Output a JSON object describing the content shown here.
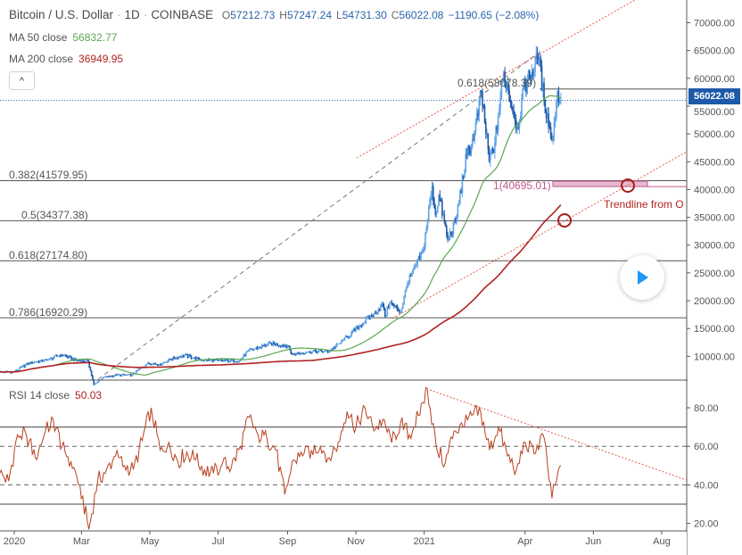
{
  "header": {
    "symbol": "Bitcoin / U.S. Dollar",
    "interval": "1D",
    "exchange": "COINBASE",
    "separator": "·",
    "o_label": "O",
    "o": "57212.73",
    "h_label": "H",
    "h": "57247.24",
    "l_label": "L",
    "l": "54731.30",
    "c_label": "C",
    "c": "56022.08",
    "change": "−1190.65 (−2.08%)"
  },
  "indicators": {
    "ma50": {
      "label": "MA 50 close",
      "value": "56832.77",
      "color": "#5aa84f"
    },
    "ma200": {
      "label": "MA 200 close",
      "value": "36949.95",
      "color": "#b22222"
    },
    "rsi": {
      "label": "RSI 14 close",
      "value": "50.03",
      "color": "#b8401f"
    }
  },
  "collapse_button": {
    "icon": "chevron-up-icon",
    "glyph": "^"
  },
  "last_price": {
    "value": "56022.08",
    "price": 56022.08,
    "color": "#1e5aa8"
  },
  "price_axis": {
    "labels": [
      "70000.00",
      "65000.00",
      "60000.00",
      "55000.00",
      "50000.00",
      "45000.00",
      "40000.00",
      "35000.00",
      "30000.00",
      "25000.00",
      "20000.00",
      "15000.00",
      "10000.00"
    ]
  },
  "rsi_axis": {
    "labels": [
      "80.00",
      "60.00",
      "40.00",
      "20.00"
    ],
    "bands": {
      "upper": 70,
      "lower": 30,
      "mid_upper": 60,
      "mid_lower": 40
    }
  },
  "time_axis": {
    "labels": [
      {
        "text": "2020",
        "date": "2020-01-01"
      },
      {
        "text": "Mar",
        "date": "2020-03-01"
      },
      {
        "text": "May",
        "date": "2020-05-01"
      },
      {
        "text": "Jul",
        "date": "2020-07-01"
      },
      {
        "text": "Sep",
        "date": "2020-09-01"
      },
      {
        "text": "Nov",
        "date": "2020-11-01"
      },
      {
        "text": "2021",
        "date": "2021-01-01"
      },
      {
        "text": "Apr",
        "date": "2021-04-01"
      },
      {
        "text": "Jun",
        "date": "2021-06-01"
      },
      {
        "text": "Aug",
        "date": "2021-08-01"
      }
    ]
  },
  "drawings": {
    "fib_levels": [
      {
        "label": "0.382(41579.95)",
        "price": 41579.95
      },
      {
        "label": "0.5(34377.38)",
        "price": 34377.38
      },
      {
        "label": "0.618(27174.80)",
        "price": 27174.8
      },
      {
        "label": "0.786(16920.29)",
        "price": 16920.29
      }
    ],
    "upper_fib": {
      "label": "0.618(58078.39)",
      "price": 58078.39
    },
    "target": {
      "label": "1(40695.01)",
      "price": 40695.01,
      "color": "#c0588a"
    },
    "trendline_text": "Trendline from O",
    "play_icon": "play-icon"
  },
  "chart_data": {
    "type": "candlestick",
    "title": "Bitcoin / U.S. Dollar · 1D · COINBASE",
    "ylim": [
      0,
      70000
    ],
    "colors": {
      "up": "#5fa3e6",
      "down": "#1e5aa8"
    },
    "closes": [
      [
        "2019-12-19",
        7150
      ],
      [
        "2020-01-01",
        7200
      ],
      [
        "2020-01-14",
        8800
      ],
      [
        "2020-01-31",
        9350
      ],
      [
        "2020-02-12",
        10350
      ],
      [
        "2020-02-25",
        9300
      ],
      [
        "2020-03-07",
        9100
      ],
      [
        "2020-03-12",
        4900
      ],
      [
        "2020-03-20",
        6200
      ],
      [
        "2020-04-01",
        6600
      ],
      [
        "2020-04-15",
        6650
      ],
      [
        "2020-04-29",
        8800
      ],
      [
        "2020-05-10",
        8600
      ],
      [
        "2020-05-20",
        9500
      ],
      [
        "2020-06-01",
        10200
      ],
      [
        "2020-06-15",
        9400
      ],
      [
        "2020-07-01",
        9200
      ],
      [
        "2020-07-20",
        9200
      ],
      [
        "2020-07-28",
        11000
      ],
      [
        "2020-08-17",
        12300
      ],
      [
        "2020-09-01",
        11900
      ],
      [
        "2020-09-05",
        10300
      ],
      [
        "2020-09-20",
        10900
      ],
      [
        "2020-10-08",
        10900
      ],
      [
        "2020-10-21",
        12900
      ],
      [
        "2020-11-05",
        15600
      ],
      [
        "2020-11-17",
        17700
      ],
      [
        "2020-11-25",
        19200
      ],
      [
        "2020-11-27",
        17100
      ],
      [
        "2020-12-01",
        19700
      ],
      [
        "2020-12-11",
        18000
      ],
      [
        "2020-12-17",
        23000
      ],
      [
        "2020-12-31",
        29000
      ],
      [
        "2021-01-08",
        40600
      ],
      [
        "2021-01-11",
        35500
      ],
      [
        "2021-01-14",
        39000
      ],
      [
        "2021-01-22",
        31000
      ],
      [
        "2021-01-29",
        34300
      ],
      [
        "2021-02-08",
        46400
      ],
      [
        "2021-02-14",
        49000
      ],
      [
        "2021-02-21",
        57500
      ],
      [
        "2021-02-28",
        45200
      ],
      [
        "2021-03-05",
        48500
      ],
      [
        "2021-03-13",
        61200
      ],
      [
        "2021-03-25",
        51300
      ],
      [
        "2021-04-01",
        58700
      ],
      [
        "2021-04-13",
        63500
      ],
      [
        "2021-04-18",
        56200
      ],
      [
        "2021-04-25",
        49000
      ],
      [
        "2021-04-30",
        57700
      ],
      [
        "2021-05-03",
        56022.08
      ]
    ],
    "rsi": {
      "start": "2019-12-19",
      "end": "2021-05-03",
      "ylim": [
        15,
        92
      ],
      "values": [
        46,
        42,
        66,
        66,
        54,
        66,
        74,
        60,
        52,
        40,
        17,
        42,
        48,
        55,
        50,
        48,
        63,
        80,
        58,
        62,
        52,
        57,
        53,
        48,
        46,
        51,
        49,
        60,
        75,
        66,
        64,
        58,
        35,
        53,
        55,
        58,
        60,
        54,
        62,
        78,
        70,
        80,
        68,
        74,
        62,
        72,
        66,
        76,
        90,
        60,
        51,
        68,
        70,
        76,
        78,
        58,
        70,
        55,
        48,
        62,
        56,
        66,
        33,
        50
      ]
    }
  }
}
